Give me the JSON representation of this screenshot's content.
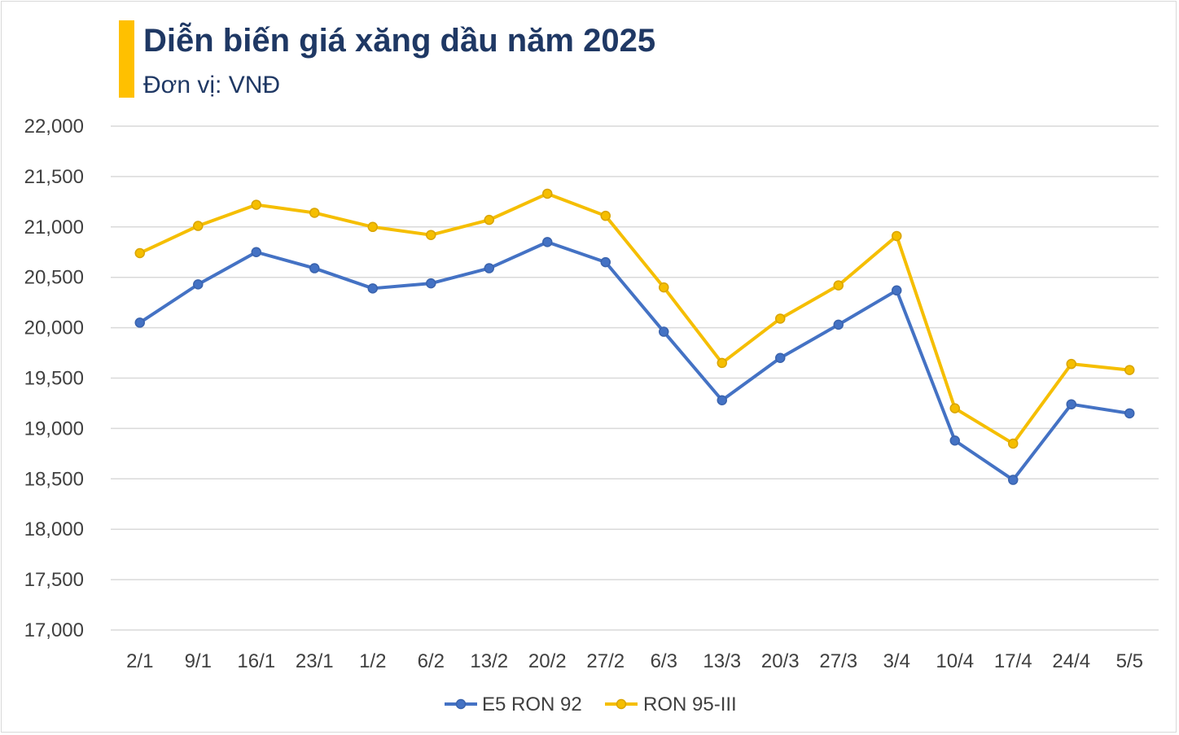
{
  "title": "Diễn biến giá xăng dầu năm 2025",
  "subtitle": "Đơn vị: VNĐ",
  "colors": {
    "accent": "#FFC000",
    "title": "#1F3864",
    "e5": "#4472C4",
    "ron95": "#F5BE00",
    "grid": "#d9d9d9"
  },
  "chart_data": {
    "type": "line",
    "title": "Diễn biến giá xăng dầu năm 2025",
    "subtitle": "Đơn vị: VNĐ",
    "categories": [
      "2/1",
      "9/1",
      "16/1",
      "23/1",
      "1/2",
      "6/2",
      "13/2",
      "20/2",
      "27/2",
      "6/3",
      "13/3",
      "20/3",
      "27/3",
      "3/4",
      "10/4",
      "17/4",
      "24/4",
      "5/5"
    ],
    "ylim": [
      17000,
      22000
    ],
    "yticks": [
      "17,000",
      "17,500",
      "18,000",
      "18,500",
      "19,000",
      "19,500",
      "20,000",
      "20,500",
      "21,000",
      "21,500",
      "22,000"
    ],
    "ytick_values": [
      17000,
      17500,
      18000,
      18500,
      19000,
      19500,
      20000,
      20500,
      21000,
      21500,
      22000
    ],
    "grid": true,
    "legend_position": "bottom",
    "series": [
      {
        "name": "E5 RON 92",
        "color": "#4472C4",
        "values": [
          20050,
          20430,
          20750,
          20590,
          20390,
          20440,
          20590,
          20850,
          20650,
          19960,
          19280,
          19700,
          20030,
          20370,
          18880,
          18490,
          19240,
          19150
        ]
      },
      {
        "name": "RON 95-III",
        "color": "#F5BE00",
        "values": [
          20740,
          21010,
          21220,
          21140,
          21000,
          20920,
          21070,
          21330,
          21110,
          20400,
          19650,
          20090,
          20420,
          20910,
          19200,
          18850,
          19640,
          19580
        ]
      }
    ]
  }
}
